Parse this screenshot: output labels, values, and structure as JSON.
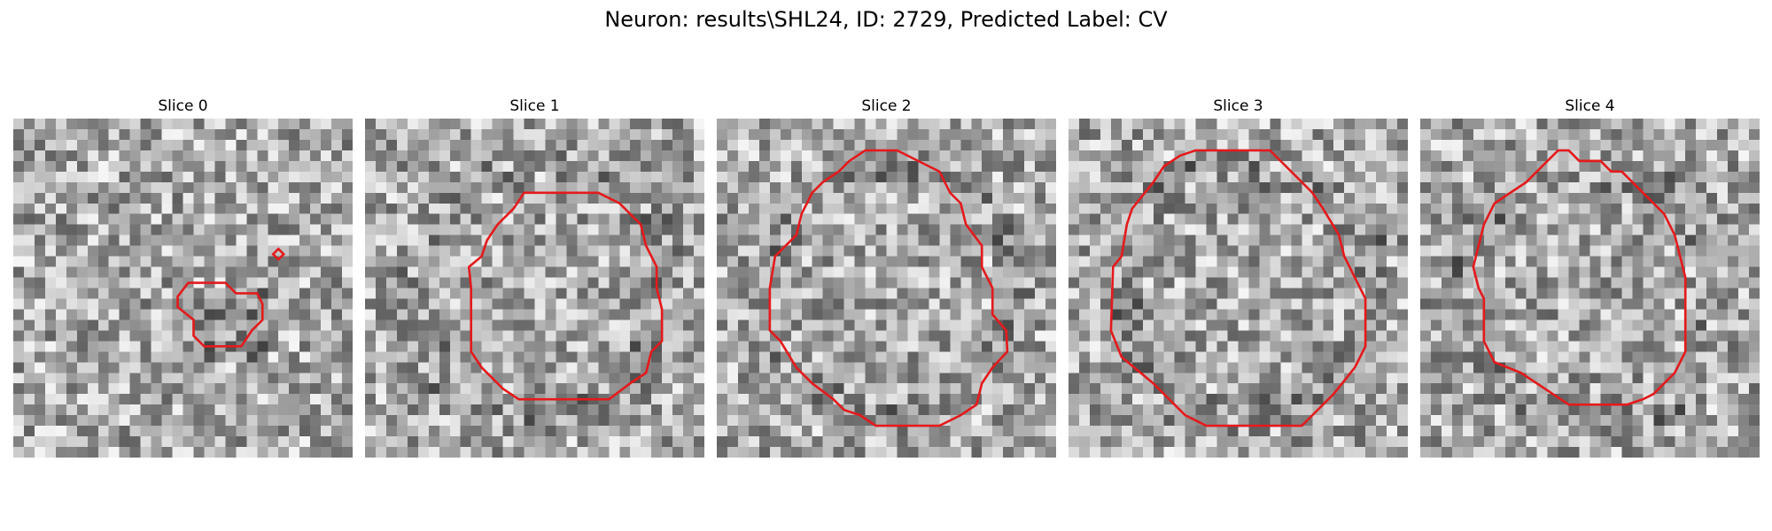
{
  "figure": {
    "title": "Neuron: results\\SHL24, ID: 2729, Predicted Label: CV"
  },
  "slices": [
    {
      "label": "Slice 0"
    },
    {
      "label": "Slice 1"
    },
    {
      "label": "Slice 2"
    },
    {
      "label": "Slice 3"
    },
    {
      "label": "Slice 4"
    }
  ],
  "colors": {
    "contour": "#e41a1c",
    "colormap": "grayscale"
  }
}
